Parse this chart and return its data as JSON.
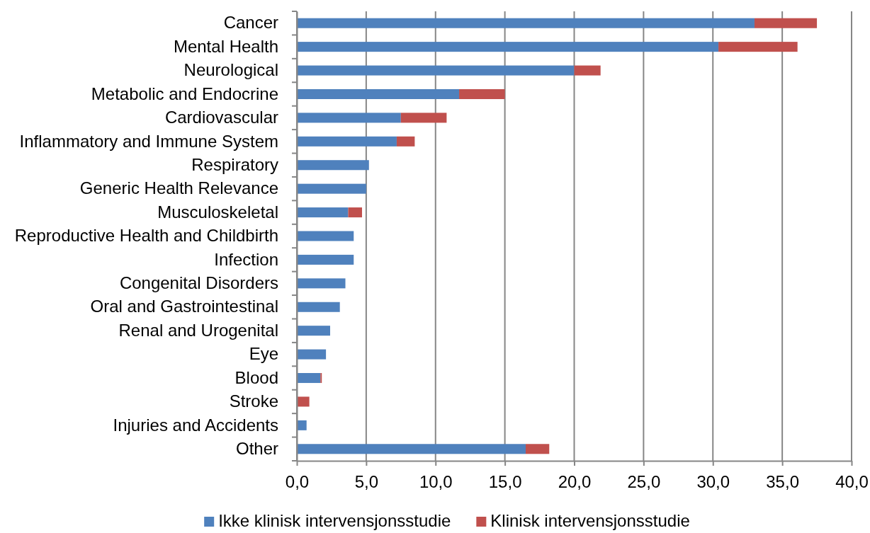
{
  "chart_data": {
    "type": "bar",
    "orientation": "horizontal",
    "stacked": true,
    "categories": [
      "Cancer",
      "Mental Health",
      "Neurological",
      "Metabolic and Endocrine",
      "Cardiovascular",
      "Inflammatory and Immune System",
      "Respiratory",
      "Generic Health Relevance",
      "Musculoskeletal",
      "Reproductive Health and Childbirth",
      "Infection",
      "Congenital Disorders",
      "Oral and Gastrointestinal",
      "Renal and Urogenital",
      "Eye",
      "Blood",
      "Stroke",
      "Injuries and Accidents",
      "Other"
    ],
    "series": [
      {
        "name": "Ikke klinisk intervensjonsstudie",
        "color": "#4f81bd",
        "values": [
          33.0,
          30.4,
          20.0,
          11.7,
          7.5,
          7.2,
          5.2,
          5.0,
          3.7,
          4.1,
          4.1,
          3.5,
          3.1,
          2.4,
          2.1,
          1.7,
          null,
          0.7,
          16.5
        ]
      },
      {
        "name": "Klinisk intervensjonsstudie",
        "color": "#c0504d",
        "values": [
          4.5,
          5.7,
          1.9,
          3.3,
          3.3,
          1.3,
          null,
          null,
          1.0,
          null,
          null,
          null,
          null,
          null,
          null,
          0.1,
          0.9,
          null,
          1.7
        ]
      }
    ],
    "xlim": [
      0,
      40
    ],
    "xticks": [
      {
        "value": 0,
        "label": "0,0"
      },
      {
        "value": 5,
        "label": "5,0"
      },
      {
        "value": 10,
        "label": "10,0"
      },
      {
        "value": 15,
        "label": "15,0"
      },
      {
        "value": 20,
        "label": "20,0"
      },
      {
        "value": 25,
        "label": "25,0"
      },
      {
        "value": 30,
        "label": "30,0"
      },
      {
        "value": 35,
        "label": "35,0"
      },
      {
        "value": 40,
        "label": "40,0"
      }
    ],
    "grid": "x",
    "legend": "bottom"
  }
}
